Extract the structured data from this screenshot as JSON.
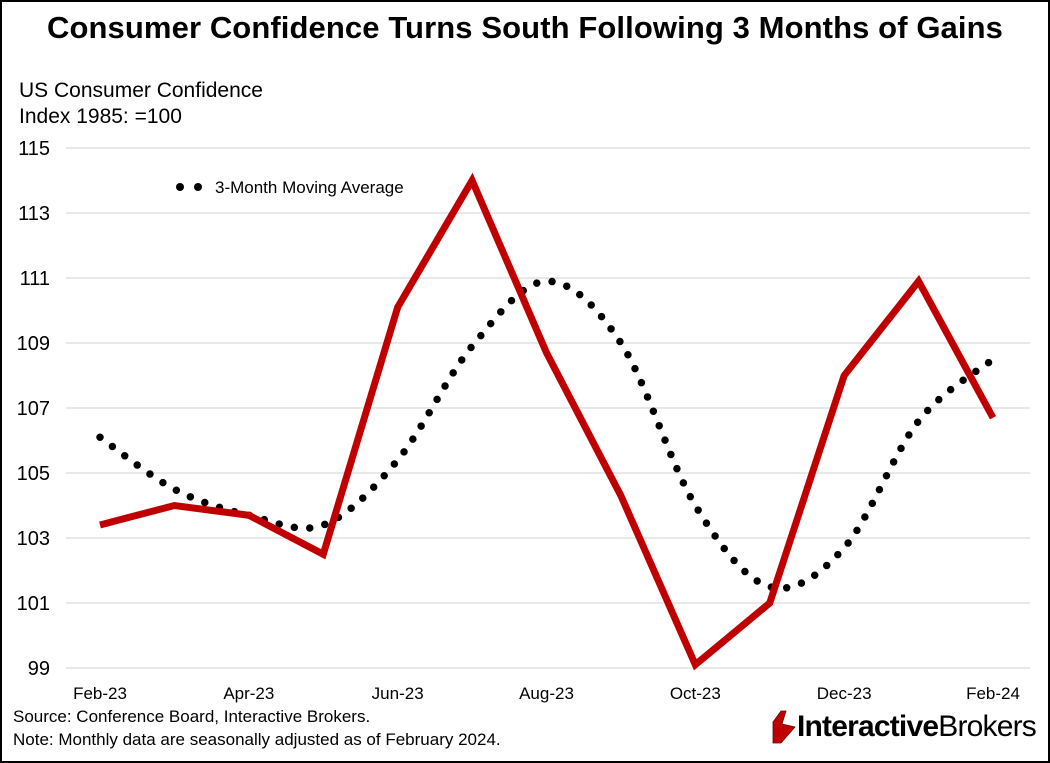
{
  "title": "Consumer Confidence Turns South Following 3 Months of Gains",
  "y_axis_label": [
    "US Consumer Confidence",
    "Index 1985: =100"
  ],
  "footnotes": {
    "source": "Source: Conference Board, Interactive Brokers.",
    "note": "Note: Monthly data are seasonally adjusted as of February 2024."
  },
  "logo": {
    "bold_part": "Interactive",
    "regular_part": "Brokers",
    "colors": {
      "mark": "#c00000",
      "mark_outline": "#5a0a0a"
    }
  },
  "chart_data": {
    "type": "line",
    "x": [
      "Feb-23",
      "Mar-23",
      "Apr-23",
      "May-23",
      "Jun-23",
      "Jul-23",
      "Aug-23",
      "Sep-23",
      "Oct-23",
      "Nov-23",
      "Dec-23",
      "Jan-24",
      "Feb-24"
    ],
    "x_tick_labels": [
      "Feb-23",
      "Apr-23",
      "Jun-23",
      "Aug-23",
      "Oct-23",
      "Dec-23",
      "Feb-24"
    ],
    "ylim": [
      99,
      115
    ],
    "y_ticks": [
      "99",
      "101",
      "103",
      "105",
      "107",
      "109",
      "111",
      "113",
      "115"
    ],
    "grid": true,
    "legend_position": "top-left",
    "series": [
      {
        "values": [
          103.4,
          104.0,
          103.7,
          102.5,
          110.1,
          114.0,
          108.7,
          104.3,
          99.1,
          101.0,
          108.0,
          110.9,
          106.7
        ],
        "color": "#c00000",
        "style": "solid"
      },
      {
        "name": "3-Month Moving Average",
        "values": [
          106.1,
          104.5,
          103.7,
          103.4,
          105.4,
          108.9,
          110.9,
          109.0,
          104.0,
          101.5,
          102.7,
          106.6,
          108.5
        ],
        "color": "#000000",
        "style": "dotted"
      }
    ]
  }
}
